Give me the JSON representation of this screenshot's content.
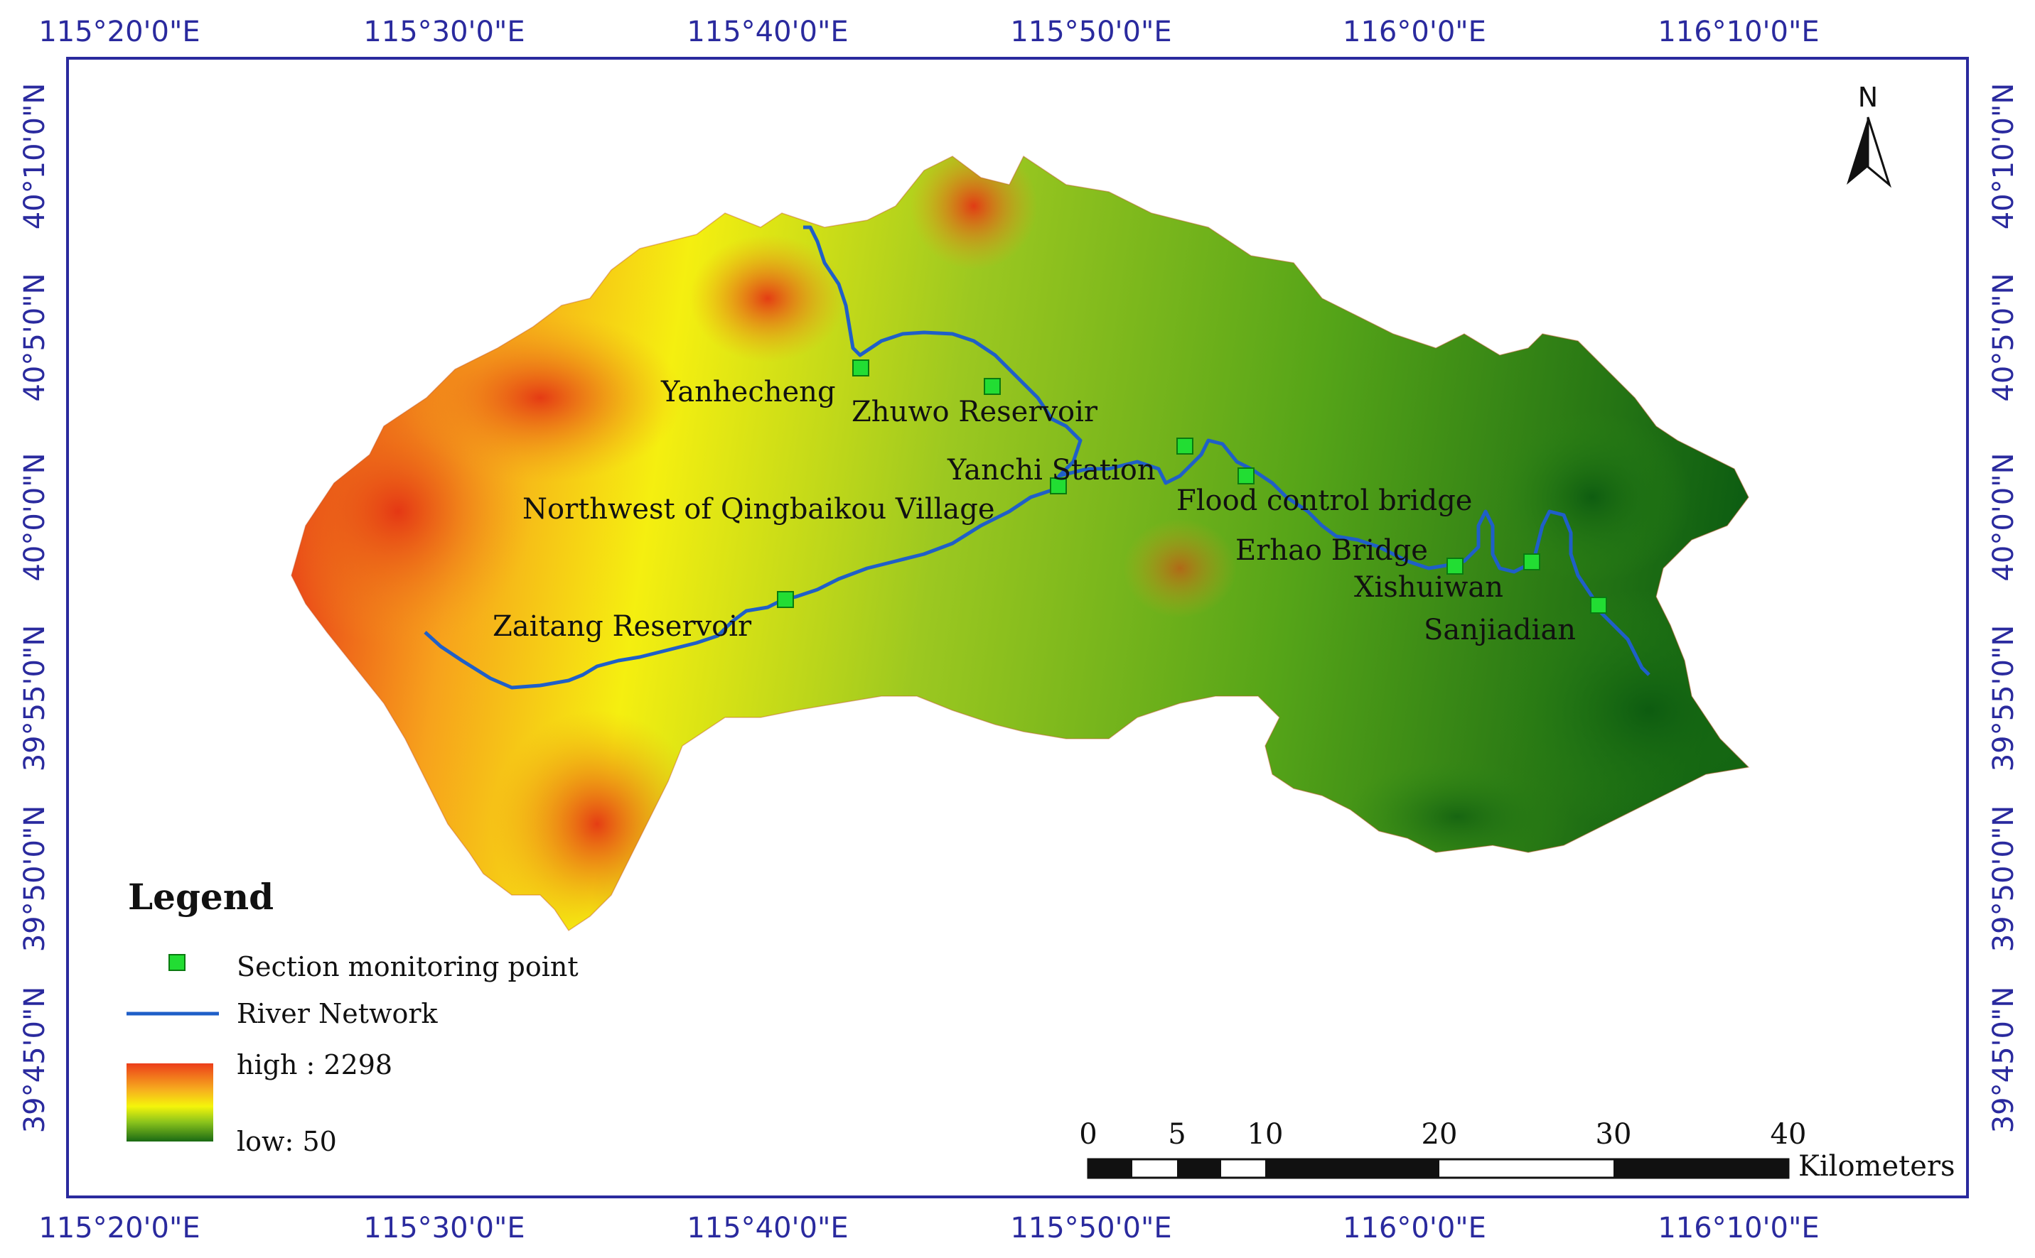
{
  "map": {
    "top_longitudes": [
      "115°20'0\"E",
      "115°30'0\"E",
      "115°40'0\"E",
      "115°50'0\"E",
      "116°0'0\"E",
      "116°10'0\"E"
    ],
    "bottom_longitudes": [
      "115°20'0\"E",
      "115°30'0\"E",
      "115°40'0\"E",
      "115°50'0\"E",
      "116°0'0\"E",
      "116°10'0\"E"
    ],
    "left_latitudes": [
      "40°10'0\"N",
      "40°5'0\"N",
      "40°0'0\"N",
      "39°55'0\"N",
      "39°50'0\"N",
      "39°45'0\"N"
    ],
    "right_latitudes": [
      "40°10'0\"N",
      "40°5'0\"N",
      "40°0'0\"N",
      "39°55'0\"N",
      "39°50'0\"N",
      "39°45'0\"N"
    ],
    "north_label": "N",
    "places": {
      "yanhecheng": "Yanhecheng",
      "zhuwo": "Zhuwo Reservoir",
      "yanchi": "Yanchi Station",
      "flood": "Flood control bridge",
      "qingbaikou": "Northwest of Qingbaikou Village",
      "erhao": "Erhao Bridge",
      "xishuiwan": "Xishuiwan",
      "zaitang": "Zaitang Reservoir",
      "sanjiadian": "Sanjiadian"
    },
    "colors": {
      "frame": "#2a2a9e",
      "river": "#1f5fc8",
      "monitoring_point": "#22dd33",
      "elevation_high": "#e8401a",
      "elevation_mid": "#f5f50a",
      "elevation_low": "#106010"
    }
  },
  "legend": {
    "title": "Legend",
    "monitoring_label": "Section monitoring point",
    "river_label": "River Network",
    "high_label": "high : 2298",
    "low_label": "low: 50",
    "elevation_high": 2298,
    "elevation_low": 50
  },
  "scale": {
    "ticks": [
      "0",
      "5",
      "10",
      "20",
      "30",
      "40"
    ],
    "unit": "Kilometers"
  }
}
